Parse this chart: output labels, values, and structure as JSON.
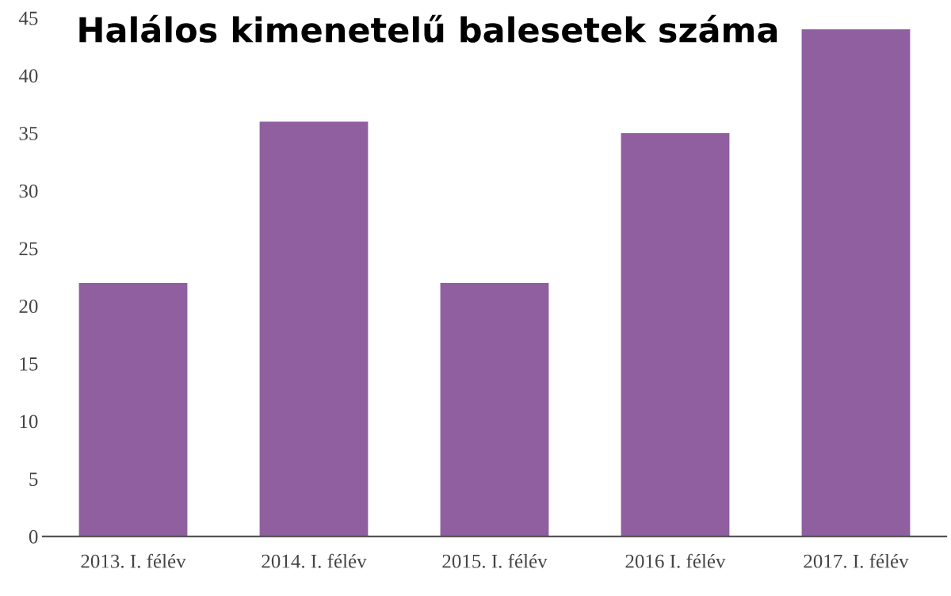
{
  "chart_data": {
    "type": "bar",
    "title": "Halálos kimenetelű balesetek száma",
    "categories": [
      "2013. I. félév",
      "2014. I. félév",
      "2015. I. félév",
      "2016 I. félév",
      "2017. I. félév"
    ],
    "values": [
      22,
      36,
      22,
      35,
      44
    ],
    "color": "#8f5fa0",
    "ylim": [
      0,
      45
    ],
    "yticks": [
      0,
      5,
      10,
      15,
      20,
      25,
      30,
      35,
      40,
      45
    ],
    "grid": false
  }
}
